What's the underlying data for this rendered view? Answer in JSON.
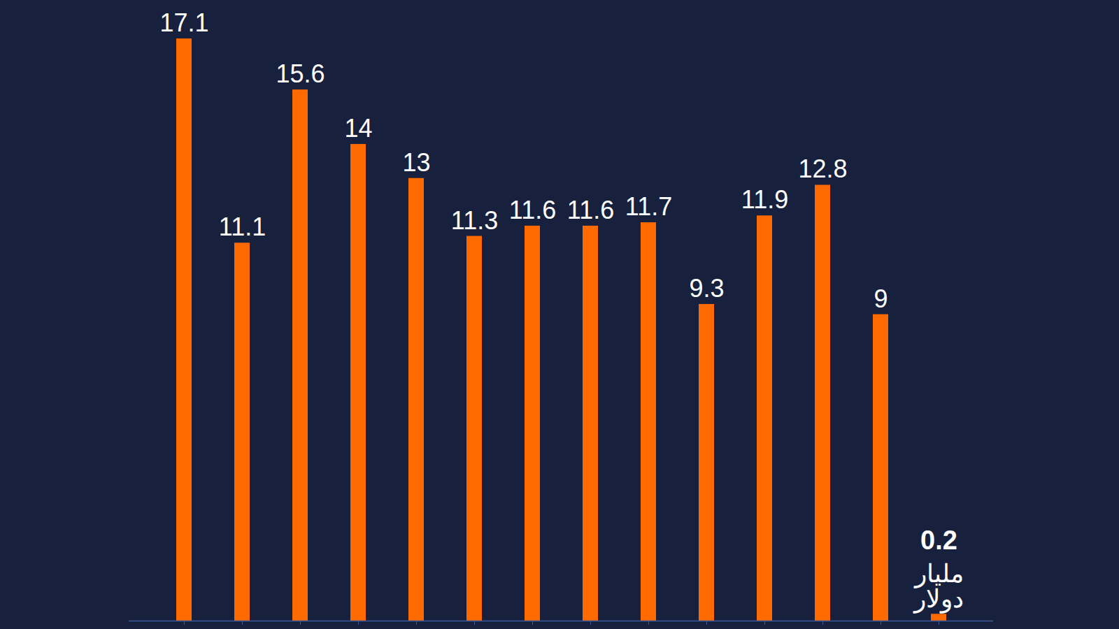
{
  "chart_data": {
    "type": "bar",
    "categories": [
      null,
      null,
      null,
      null,
      null,
      null,
      null,
      null,
      null,
      null,
      null,
      null,
      null,
      null
    ],
    "values": [
      17.1,
      11.1,
      15.6,
      14,
      13,
      11.3,
      11.6,
      11.6,
      11.7,
      9.3,
      11.9,
      12.8,
      9,
      0.2
    ],
    "color": "#ff6a00",
    "ylim": [
      0,
      17.1
    ],
    "data_labels": true,
    "tick_labels": false,
    "annotation": "مليار دولار"
  }
}
